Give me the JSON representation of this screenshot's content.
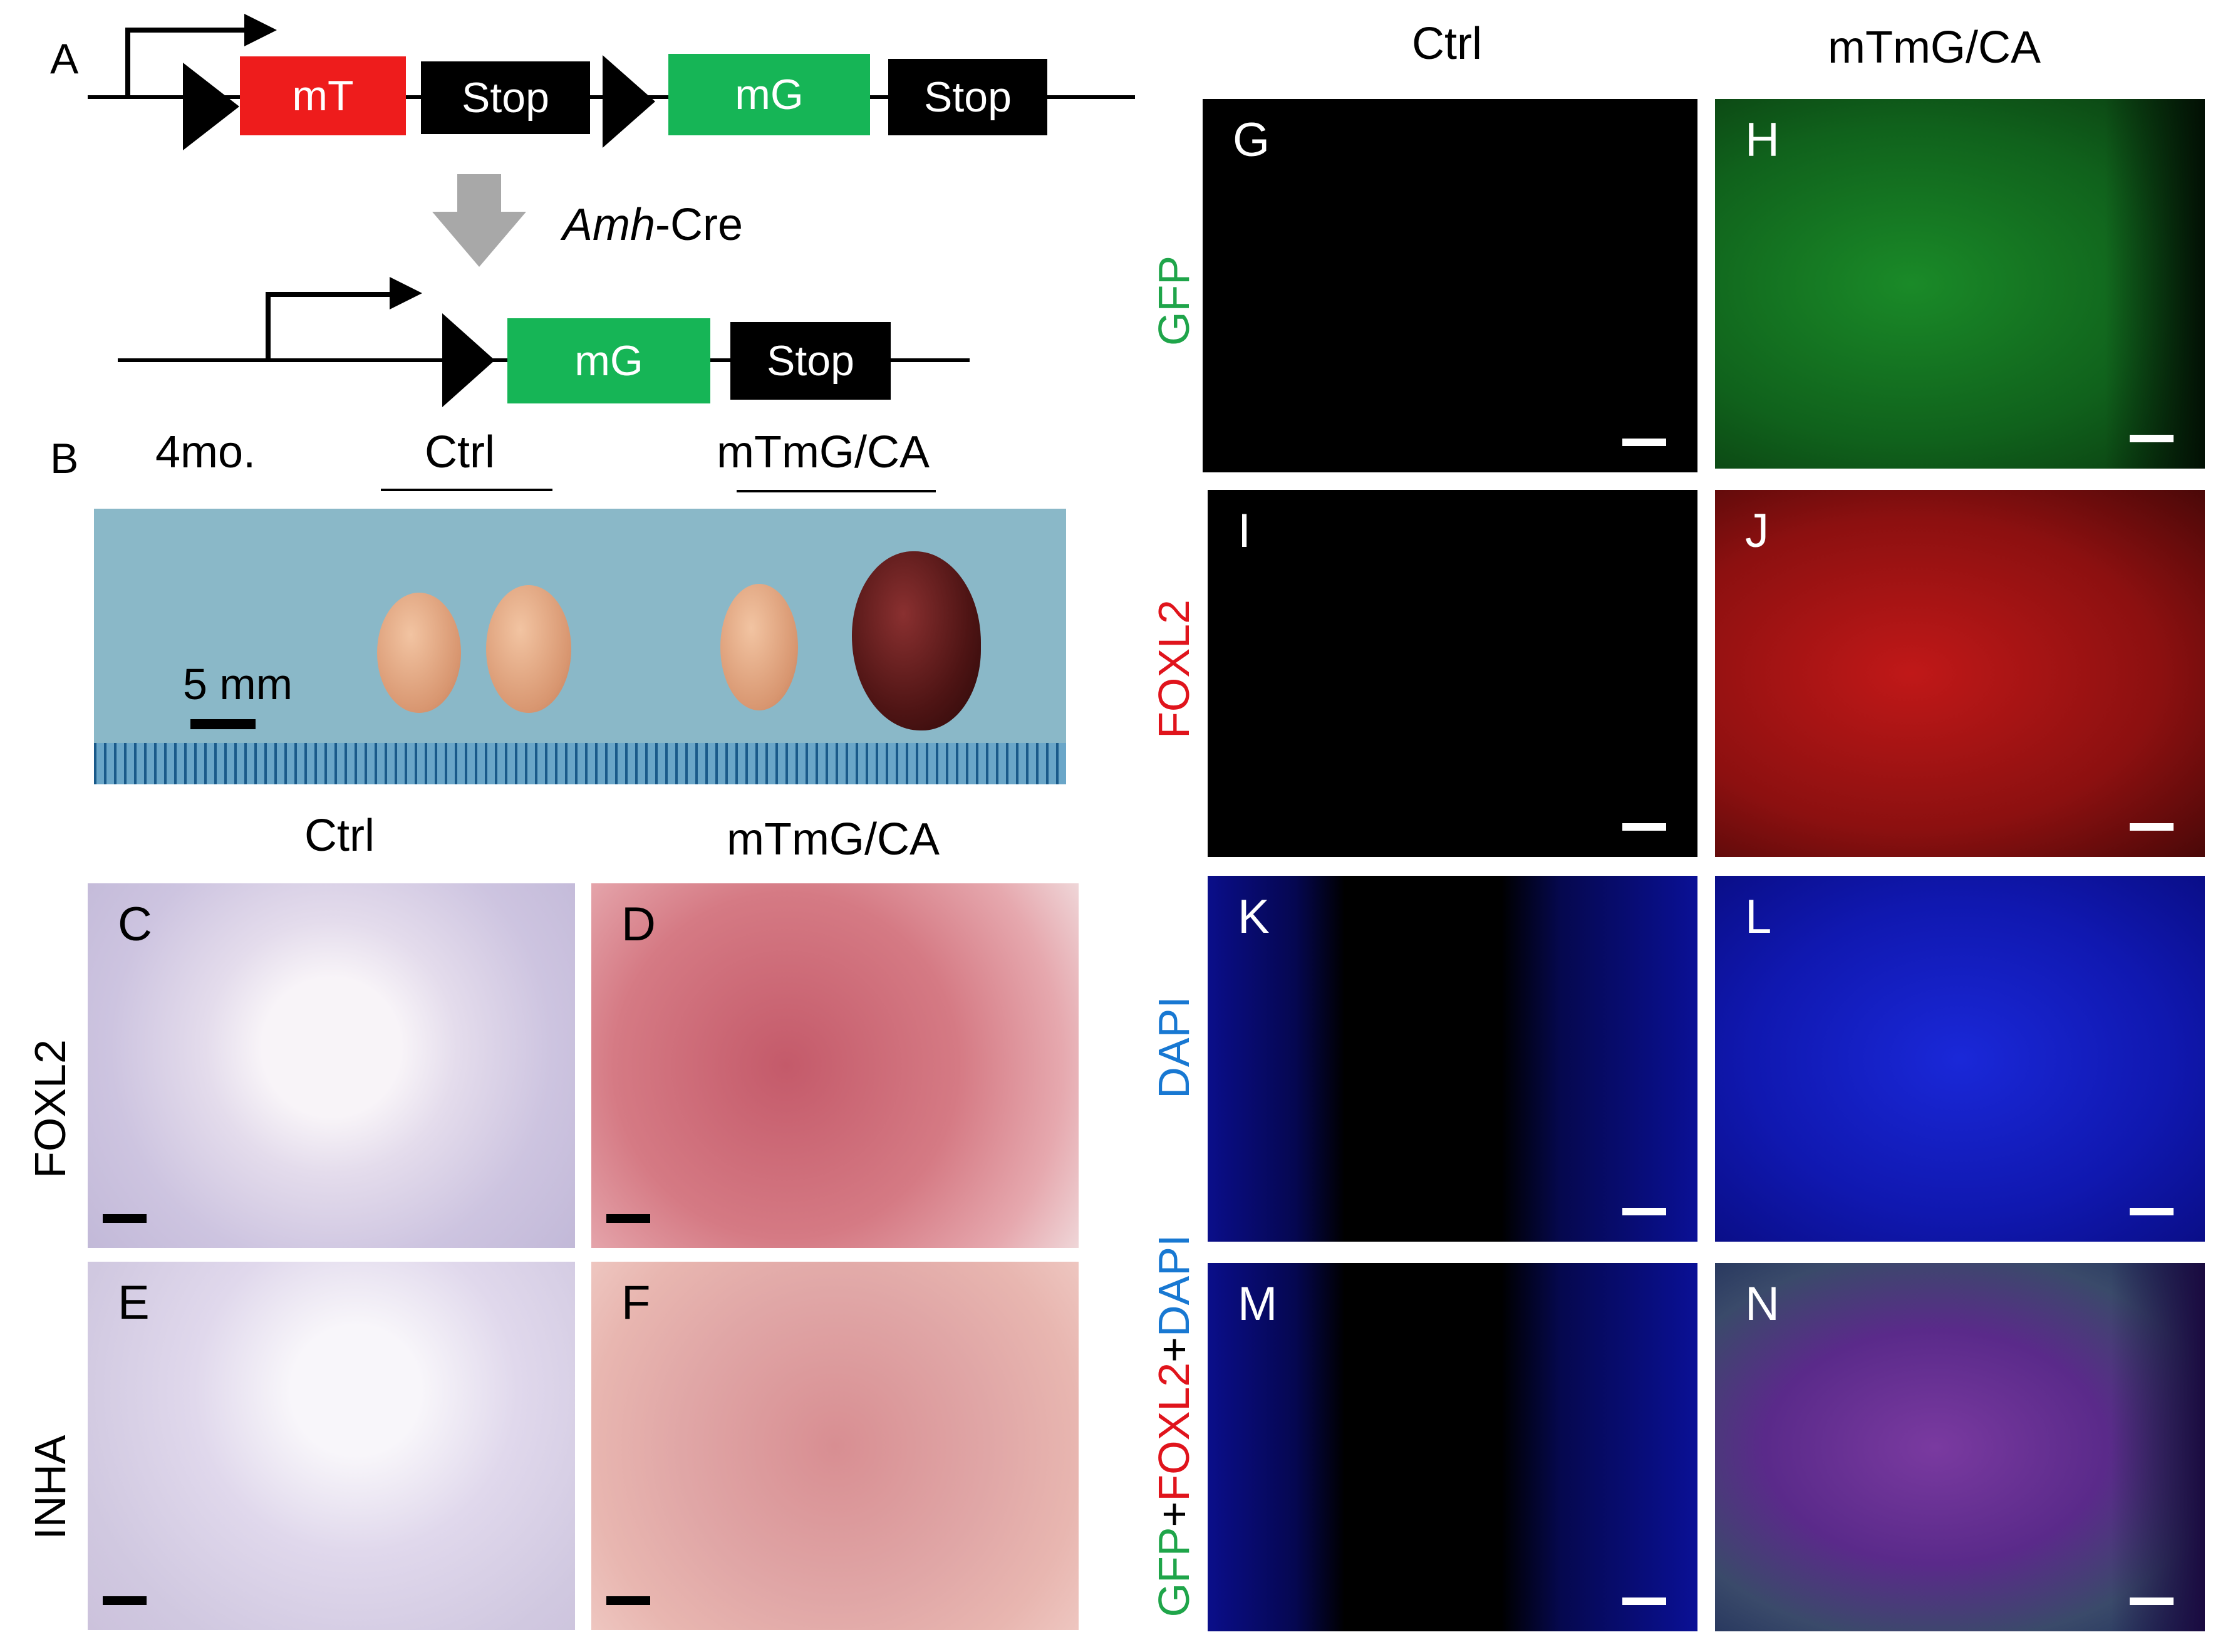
{
  "panels": {
    "A": "A",
    "B": "B",
    "C": "C",
    "D": "D",
    "E": "E",
    "F": "F",
    "G": "G",
    "H": "H",
    "I": "I",
    "J": "J",
    "K": "K",
    "L": "L",
    "M": "M",
    "N": "N"
  },
  "construct": {
    "top": {
      "mt": "mT",
      "stop1": "Stop",
      "mg": "mG",
      "stop2": "Stop"
    },
    "cre_italic": "Amh",
    "cre_rest": "-Cre",
    "bottom": {
      "mg": "mG",
      "stop": "Stop"
    }
  },
  "gross": {
    "age": "4mo.",
    "ctrl": "Ctrl",
    "mtmg": "mTmG/CA",
    "scale": "5 mm"
  },
  "ihc": {
    "col_ctrl": "Ctrl",
    "col_mtmg": "mTmG/CA",
    "row1": "FOXL2",
    "row2": "INHA"
  },
  "fluor": {
    "col_ctrl": "Ctrl",
    "col_mtmg": "mTmG/CA",
    "row_gfp": "GFP",
    "row_foxl2": "FOXL2",
    "row_dapi": "DAPI",
    "merge_gfp": "GFP",
    "merge_plus1": "+",
    "merge_foxl2": "FOXL2",
    "merge_plus2": "+",
    "merge_dapi": "DAPI"
  },
  "colors": {
    "mt_box": "#ee1c1c",
    "mg_box": "#16b556",
    "stop_box": "#000000",
    "gfp": "#1fa54a",
    "foxl2": "#e0141c",
    "dapi": "#1878d2",
    "ruler_bg": "#8ab8c8"
  }
}
